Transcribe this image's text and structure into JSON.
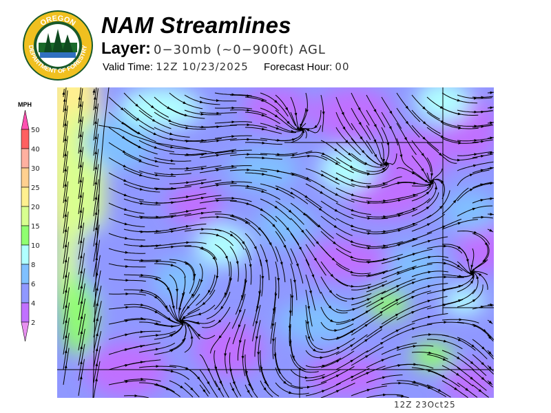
{
  "header": {
    "title": "NAM Streamlines",
    "layer_label": "Layer:",
    "layer_value": "0−30mb (~0−900ft) AGL",
    "valid_label": "Valid Time:",
    "valid_value": "12Z 10/23/2025",
    "forecast_label": "Forecast Hour:",
    "forecast_value": "00"
  },
  "logo": {
    "text_top": "OREGON",
    "text_bottom": "DEPARTMENT OF FORESTRY"
  },
  "legend": {
    "unit": "MPH",
    "ticks": [
      "50",
      "40",
      "30",
      "25",
      "20",
      "15",
      "10",
      "8",
      "6",
      "4",
      "2"
    ],
    "colors": [
      "#ff6060",
      "#ffb0a0",
      "#ffd090",
      "#fff090",
      "#d8ff90",
      "#90ff70",
      "#b0ffff",
      "#80c0ff",
      "#9098ff",
      "#c070ff"
    ],
    "over_color": "#ff50b0",
    "under_color": "#e890f0"
  },
  "map": {
    "variable": "wind speed and streamlines"
  },
  "stamp": "12Z 23Oct25"
}
